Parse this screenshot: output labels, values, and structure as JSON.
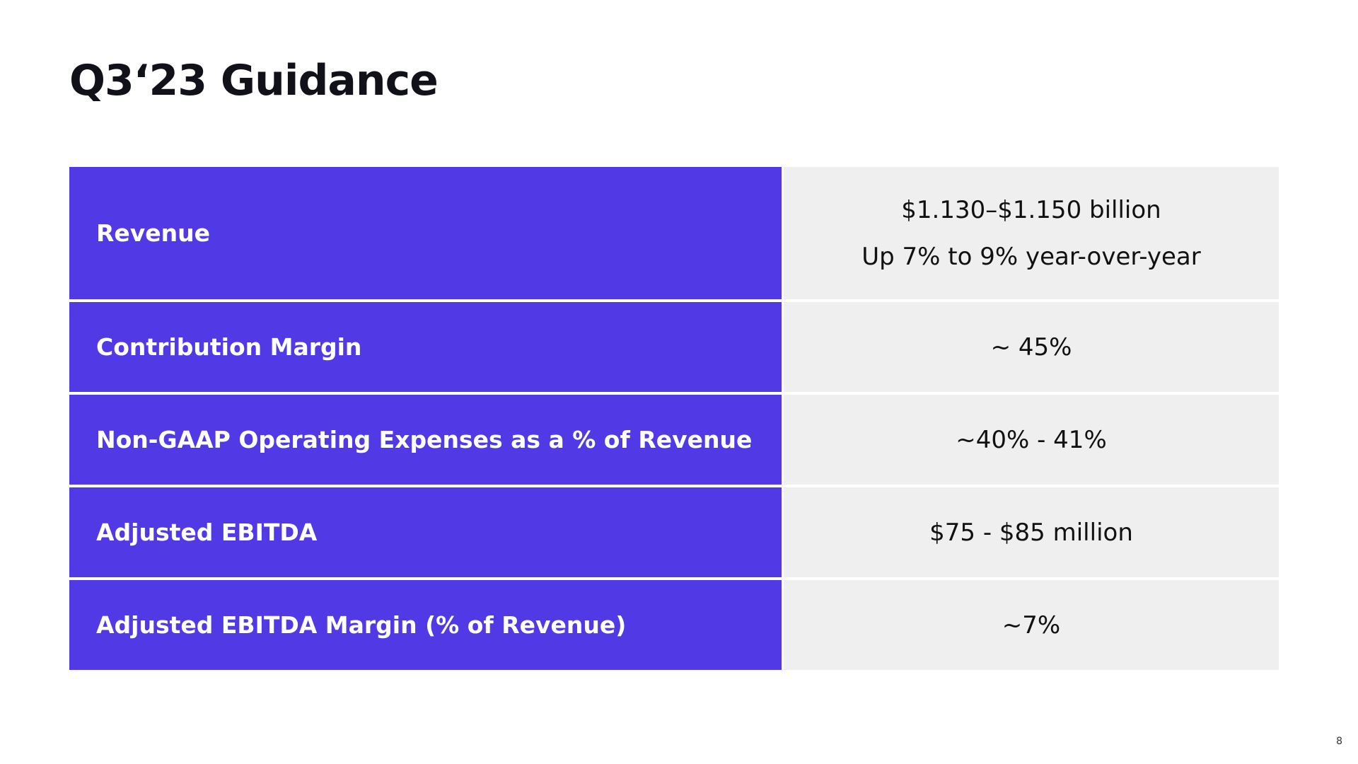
{
  "title": "Q3‘23 Guidance",
  "rows": [
    {
      "label": "Revenue",
      "values": [
        "$1.130–$1.150 billion",
        "Up 7% to 9% year-over-year"
      ]
    },
    {
      "label": "Contribution Margin",
      "values": [
        "~ 45%"
      ]
    },
    {
      "label": "Non-GAAP Operating Expenses as a % of Revenue",
      "values": [
        "~40% - 41%"
      ]
    },
    {
      "label": "Adjusted EBITDA",
      "values": [
        "$75 - $85 million"
      ]
    },
    {
      "label": "Adjusted EBITDA Margin (% of Revenue)",
      "values": [
        "~7%"
      ]
    }
  ],
  "page_number": "8",
  "colors": {
    "label_background": "#5139e6",
    "value_background": "#efefef",
    "title_text": "#11111a"
  }
}
